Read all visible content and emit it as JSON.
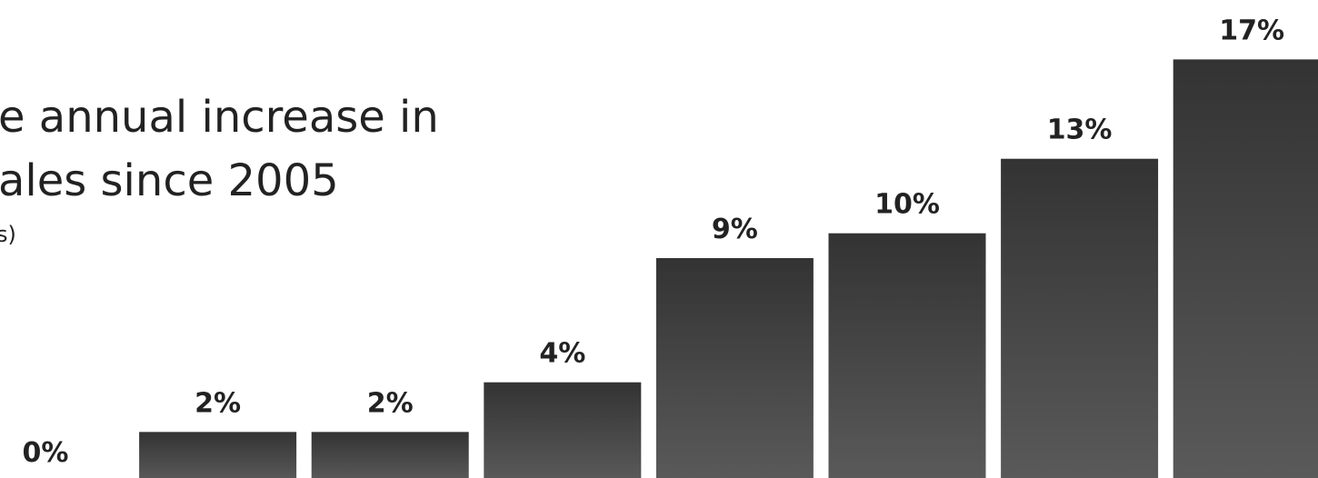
{
  "chart_data": {
    "type": "bar",
    "title_lines": [
      "e annual increase in",
      "ales since 2005"
    ],
    "subtitle": "s)",
    "categories": [
      null,
      null,
      null,
      null,
      null,
      null,
      null,
      null
    ],
    "values": [
      0,
      2,
      2,
      4,
      9,
      10,
      13,
      17
    ],
    "value_labels": [
      "0%",
      "2%",
      "2%",
      "4%",
      "9%",
      "10%",
      "13%",
      "17%"
    ],
    "color": [
      "#333333",
      "#5a5a5a"
    ]
  }
}
